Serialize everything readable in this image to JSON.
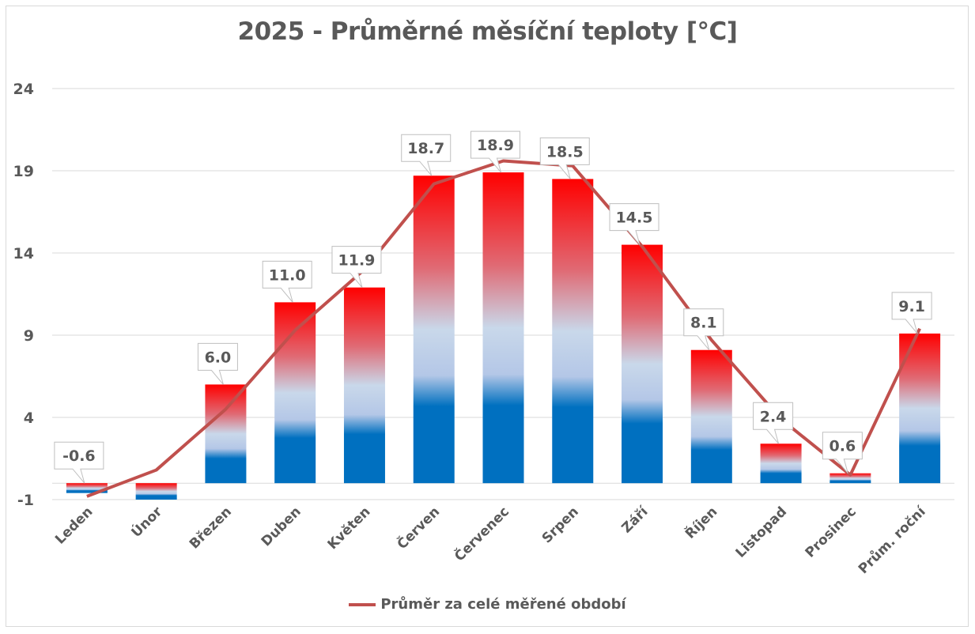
{
  "chart_data": {
    "type": "bar",
    "title": "2025 - Průměrné měsíční teploty [°C]",
    "xlabel": "",
    "ylabel": "",
    "ylim": [
      -1,
      24
    ],
    "yticks": [
      24,
      19,
      14,
      9,
      4,
      -1
    ],
    "grid": true,
    "legend_position": "bottom",
    "categories": [
      "Leden",
      "Únor",
      "Březen",
      "Duben",
      "Květen",
      "Červen",
      "Červenec",
      "Srpen",
      "Září",
      "Říjen",
      "Listopad",
      "Prosinec",
      "Prům. roční"
    ],
    "series": [
      {
        "name": "2025",
        "type": "bar",
        "values": [
          -0.6,
          -1.0,
          6.0,
          11.0,
          11.9,
          18.7,
          18.9,
          18.5,
          14.5,
          8.1,
          2.4,
          0.6,
          9.1
        ],
        "data_labels": [
          "-0.6",
          null,
          "6.0",
          "11.0",
          "11.9",
          "18.7",
          "18.9",
          "18.5",
          "14.5",
          "8.1",
          "2.4",
          "0.6",
          "9.1"
        ],
        "fill": "gradient blue-to-red",
        "colors": {
          "cold": "#0070c0",
          "mid": "#c5d5e8",
          "warm": "#ff0000"
        }
      },
      {
        "name": "Průměr za celé měřené období",
        "type": "line",
        "values": [
          -0.8,
          0.8,
          4.5,
          9.3,
          13.0,
          18.2,
          19.6,
          19.3,
          14.4,
          8.7,
          3.9,
          0.5,
          9.4
        ],
        "color": "#c0504d"
      }
    ]
  },
  "legend": {
    "line_label": "Průměr za celé měřené období"
  }
}
